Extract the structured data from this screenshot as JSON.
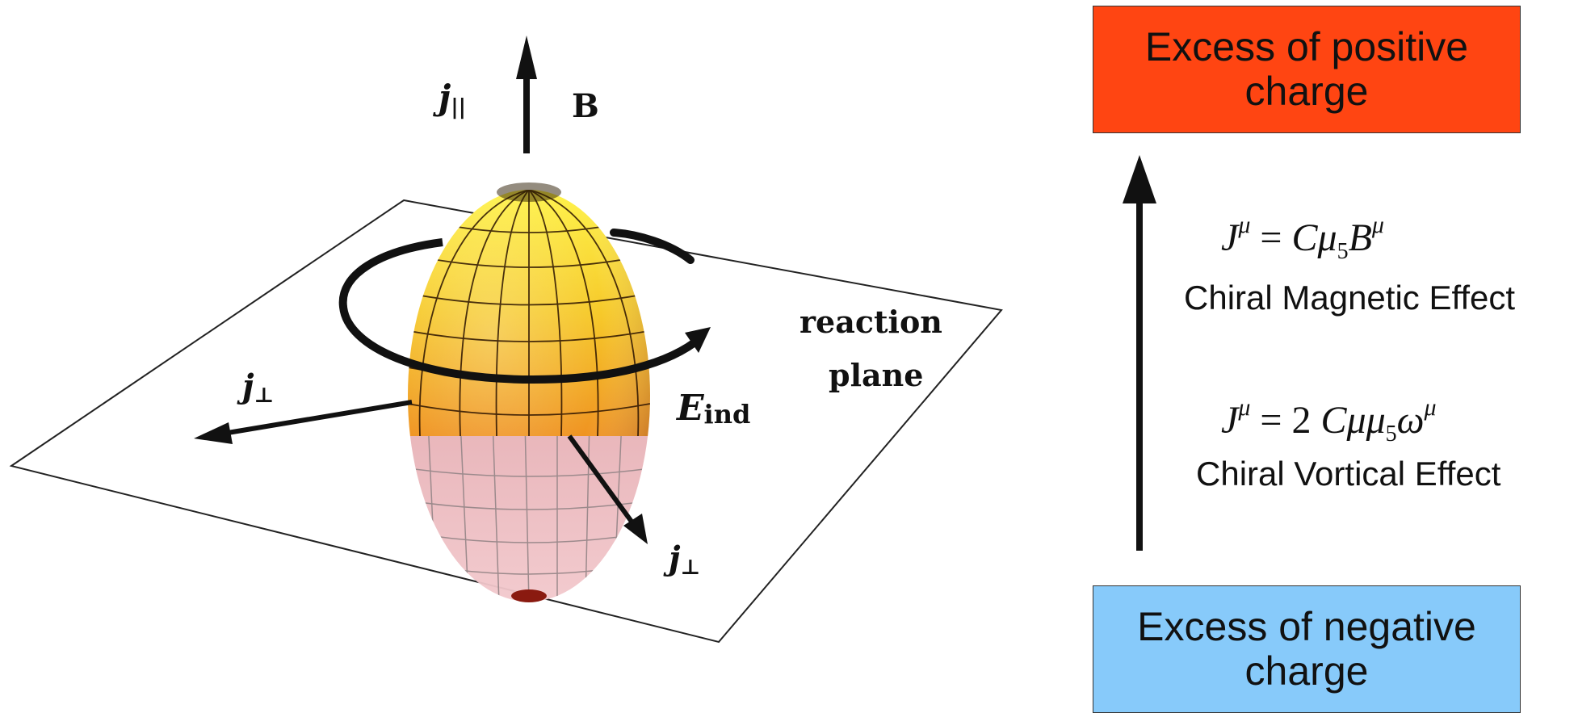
{
  "diagram": {
    "labels": {
      "j_parallel": "j",
      "j_parallel_sub": "||",
      "B": "B",
      "j_perp_left": "j",
      "j_perp_right": "j",
      "perp_sub": "⊥",
      "E_ind": "E",
      "E_ind_sub": "ind",
      "reaction_line1": "reaction",
      "reaction_line2": "plane"
    },
    "colors": {
      "ellipsoid_top": "#f5d020",
      "ellipsoid_mid": "#f08a1c",
      "ellipsoid_band": "#d8341a",
      "ellipsoid_lower": "#e8a0a8",
      "positive_box": "#ff4512",
      "negative_box": "#87cafa"
    }
  },
  "right_panel": {
    "positive_box": "Excess of positive\ncharge",
    "negative_box": "Excess of negative\ncharge",
    "cme_effect": "Chiral Magnetic Effect",
    "cve_effect": "Chiral Vortical Effect"
  }
}
